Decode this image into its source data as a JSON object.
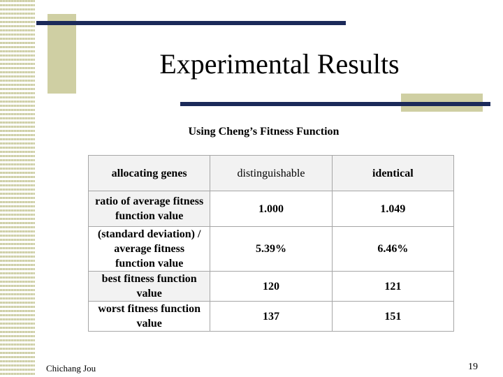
{
  "slide": {
    "title": "Experimental Results",
    "subtitle": "Using Cheng’s Fitness Function",
    "footer_author": "Chichang Jou",
    "page_number": "19"
  },
  "table": {
    "headers": [
      "allocating genes",
      "distinguishable",
      "identical"
    ],
    "rows": [
      {
        "label": "ratio of average  fitness function value",
        "distinguishable": "1.000",
        "identical": "1.049"
      },
      {
        "label": "(standard deviation) / average fitness function value",
        "distinguishable": "5.39%",
        "identical": "6.46%"
      },
      {
        "label": "best fitness function value",
        "distinguishable": "120",
        "identical": "121"
      },
      {
        "label": "worst  fitness function value",
        "distinguishable": "137",
        "identical": "151"
      }
    ]
  },
  "colors": {
    "accent_navy": "#1b2a59",
    "accent_tan": "#cfcfa3",
    "table_border": "#a6a6a6"
  }
}
